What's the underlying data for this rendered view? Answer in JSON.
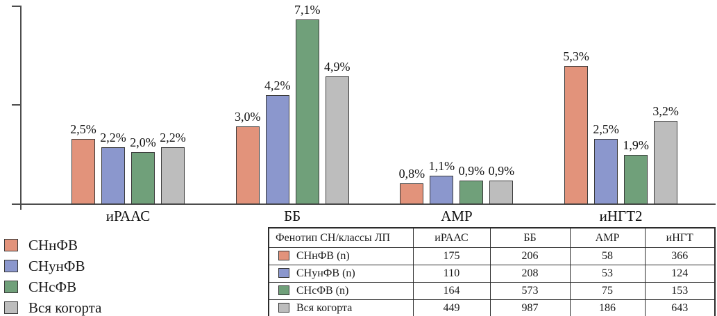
{
  "chart_data": {
    "type": "bar",
    "title": "",
    "xlabel": "",
    "ylabel": "",
    "categories": [
      "иРААС",
      "ББ",
      "АМР",
      "иНГТ2"
    ],
    "series": [
      {
        "name": "СНнФВ",
        "color": "#E2937B",
        "values": [
          2.5,
          3.0,
          0.8,
          5.3
        ],
        "labels": [
          "2,5%",
          "3,0%",
          "0,8%",
          "5,3%"
        ]
      },
      {
        "name": "СНунФВ",
        "color": "#8B97CD",
        "values": [
          2.2,
          4.2,
          1.1,
          2.5
        ],
        "labels": [
          "2,2%",
          "4,2%",
          "1,1%",
          "2,5%"
        ]
      },
      {
        "name": "СНсФВ",
        "color": "#70A07A",
        "values": [
          2.0,
          7.1,
          0.9,
          1.9
        ],
        "labels": [
          "2,0%",
          "7,1%",
          "0,9%",
          "1,9%"
        ]
      },
      {
        "name": "Вся когорта",
        "color": "#BDBDBD",
        "values": [
          2.2,
          4.9,
          0.9,
          3.2
        ],
        "labels": [
          "2,2%",
          "4,9%",
          "0,9%",
          "3,2%"
        ]
      }
    ],
    "ylim": [
      0,
      7.84
    ],
    "yticks": {
      "labels_shown": false,
      "tick_count": 3
    },
    "grid": false,
    "legend_position": "bottom-left",
    "value_labels_shown": true
  },
  "legend": {
    "items": [
      {
        "label": "СНнФВ",
        "color": "#E2937B"
      },
      {
        "label": "СНунФВ",
        "color": "#8B97CD"
      },
      {
        "label": "СНсФВ",
        "color": "#70A07A"
      },
      {
        "label": "Вся когорта",
        "color": "#BDBDBD"
      }
    ]
  },
  "table": {
    "header": [
      "Фенотип СН/классы ЛП",
      "иРААС",
      "ББ",
      "АМР",
      "иНГТ"
    ],
    "rows": [
      {
        "label": "СНнФВ (n)",
        "color": "#E2937B",
        "values": [
          "175",
          "206",
          "58",
          "366"
        ]
      },
      {
        "label": "СНунФВ (n)",
        "color": "#8B97CD",
        "values": [
          "110",
          "208",
          "53",
          "124"
        ]
      },
      {
        "label": "СНсФВ (n)",
        "color": "#70A07A",
        "values": [
          "164",
          "573",
          "75",
          "153"
        ]
      },
      {
        "label": "Вся когорта",
        "color": "#BDBDBD",
        "values": [
          "449",
          "987",
          "186",
          "643"
        ]
      }
    ]
  },
  "colors": {
    "axis": "#4d4d4d",
    "bar_border": "#3b3b3b",
    "background": "#ffffff"
  }
}
